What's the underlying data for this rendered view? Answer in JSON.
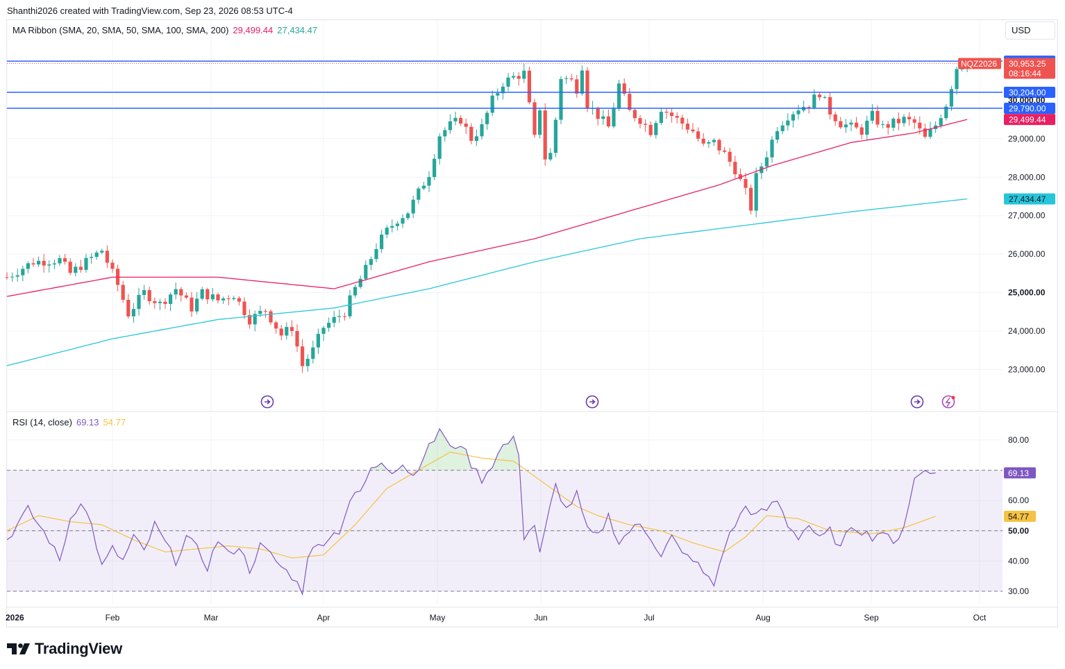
{
  "header": {
    "attribution": "Shanthi2026 created with TradingView.com, Sep 23, 2026 08:53 UTC-4"
  },
  "currency": "USD",
  "symbol": "NQZ2026",
  "countdown": "08:16:44",
  "logo_text": "TradingView",
  "colors": {
    "up": "#26a69a",
    "down": "#ef5350",
    "ma_fast": "#e91e63",
    "ma_slow": "#26c6da",
    "level": "#2962ff",
    "rsi": "#7e57c2",
    "rsi_ma": "#f5c242"
  },
  "chart_data": [
    {
      "type": "candlestick",
      "title": "MA Ribbon (SMA, 20, SMA, 50, SMA, 100, SMA, 200)",
      "ma_values": [
        "29,499.44",
        "27,434.47"
      ],
      "x_tick_labels": [
        "2026",
        "Feb",
        "Mar",
        "Apr",
        "May",
        "Jun",
        "Jul",
        "Aug",
        "Sep",
        "Oct"
      ],
      "y_tick_labels": [
        "29,000.00",
        "28,000.00",
        "27,000.00",
        "26,000.00",
        "25,000.00",
        "24,000.00",
        "23,000.00"
      ],
      "y_ticks": [
        29000,
        28000,
        27000,
        26000,
        25000,
        24000,
        23000
      ],
      "ylim": [
        22200,
        31400
      ],
      "horizontal_levels": [
        31013.75,
        30204.0,
        29790.0
      ],
      "price_tags": [
        {
          "label": "31,013.75",
          "value": 31013.75,
          "kind": "level"
        },
        {
          "label": "30,953.25",
          "value": 30953.25,
          "kind": "last"
        },
        {
          "label": "30,204.00",
          "value": 30204.0,
          "kind": "level"
        },
        {
          "label": "30,000.00",
          "value": 30000.0,
          "kind": "tick"
        },
        {
          "label": "29,790.00",
          "value": 29790.0,
          "kind": "level"
        },
        {
          "label": "29,499.44",
          "value": 29499.44,
          "kind": "ma_fast"
        },
        {
          "label": "27,434.47",
          "value": 27434.47,
          "kind": "ma_slow"
        }
      ],
      "anchor_points": [
        [
          0,
          25400
        ],
        [
          5,
          25800
        ],
        [
          10,
          25850
        ],
        [
          12,
          25500
        ],
        [
          15,
          25800
        ],
        [
          18,
          26100
        ],
        [
          21,
          25200
        ],
        [
          23,
          24450
        ],
        [
          26,
          25000
        ],
        [
          29,
          24700
        ],
        [
          32,
          25100
        ],
        [
          35,
          24600
        ],
        [
          37,
          25000
        ],
        [
          40,
          24800
        ],
        [
          43,
          24950
        ],
        [
          46,
          24300
        ],
        [
          49,
          24550
        ],
        [
          52,
          23900
        ],
        [
          54,
          24100
        ],
        [
          56,
          23100
        ],
        [
          58,
          23500
        ],
        [
          60,
          24100
        ],
        [
          62,
          24300
        ],
        [
          64,
          24500
        ],
        [
          66,
          25100
        ],
        [
          68,
          25600
        ],
        [
          70,
          26200
        ],
        [
          72,
          26600
        ],
        [
          74,
          26900
        ],
        [
          76,
          27100
        ],
        [
          78,
          27600
        ],
        [
          80,
          28100
        ],
        [
          82,
          29100
        ],
        [
          84,
          29350
        ],
        [
          86,
          29500
        ],
        [
          88,
          29000
        ],
        [
          90,
          29300
        ],
        [
          92,
          30000
        ],
        [
          94,
          30450
        ],
        [
          96,
          30600
        ],
        [
          98,
          30700
        ],
        [
          100,
          29000
        ],
        [
          101,
          29800
        ],
        [
          102,
          28500
        ],
        [
          103,
          28600
        ],
        [
          104,
          29500
        ],
        [
          105,
          30600
        ],
        [
          107,
          30500
        ],
        [
          108,
          30300
        ],
        [
          109,
          30900
        ],
        [
          110,
          29900
        ],
        [
          112,
          29600
        ],
        [
          114,
          29300
        ],
        [
          116,
          30400
        ],
        [
          118,
          29700
        ],
        [
          120,
          29500
        ],
        [
          122,
          29200
        ],
        [
          124,
          29800
        ],
        [
          126,
          29600
        ],
        [
          128,
          29400
        ],
        [
          130,
          29200
        ],
        [
          132,
          28800
        ],
        [
          134,
          28900
        ],
        [
          136,
          28600
        ],
        [
          138,
          28200
        ],
        [
          140,
          27600
        ],
        [
          141,
          27200
        ],
        [
          142,
          28000
        ],
        [
          144,
          28600
        ],
        [
          146,
          29300
        ],
        [
          148,
          29600
        ],
        [
          150,
          29800
        ],
        [
          152,
          29900
        ],
        [
          154,
          30200
        ],
        [
          156,
          29700
        ],
        [
          158,
          29400
        ],
        [
          160,
          29300
        ],
        [
          162,
          29200
        ],
        [
          164,
          29600
        ],
        [
          166,
          29300
        ],
        [
          168,
          29400
        ],
        [
          170,
          29500
        ],
        [
          172,
          29400
        ],
        [
          174,
          29000
        ],
        [
          176,
          29350
        ],
        [
          178,
          29900
        ],
        [
          180,
          30850
        ],
        [
          182,
          30953
        ]
      ],
      "ma_fast_anchors": [
        [
          0,
          24900
        ],
        [
          20,
          25400
        ],
        [
          40,
          25400
        ],
        [
          62,
          25100
        ],
        [
          80,
          25800
        ],
        [
          100,
          26400
        ],
        [
          120,
          27200
        ],
        [
          135,
          27800
        ],
        [
          145,
          28300
        ],
        [
          160,
          28900
        ],
        [
          172,
          29150
        ],
        [
          182,
          29499.44
        ]
      ],
      "ma_slow_anchors": [
        [
          0,
          23100
        ],
        [
          20,
          23800
        ],
        [
          40,
          24300
        ],
        [
          62,
          24600
        ],
        [
          80,
          25100
        ],
        [
          100,
          25800
        ],
        [
          120,
          26400
        ],
        [
          140,
          26750
        ],
        [
          160,
          27100
        ],
        [
          182,
          27434.47
        ]
      ]
    },
    {
      "type": "line",
      "title": "RSI (14, close)",
      "values": [
        "69.13",
        "54.77"
      ],
      "y_tick_labels": [
        "80.00",
        "60.00",
        "50.00",
        "40.00",
        "30.00"
      ],
      "y_ticks": [
        80,
        60,
        50,
        40,
        30
      ],
      "ylim": [
        28,
        86
      ],
      "bands": [
        30,
        50,
        70
      ],
      "last_rsi": 69.13,
      "last_ma": 54.77,
      "rsi_anchors": [
        [
          0,
          47
        ],
        [
          4,
          57
        ],
        [
          8,
          47
        ],
        [
          10,
          40
        ],
        [
          12,
          54
        ],
        [
          14,
          60
        ],
        [
          16,
          52
        ],
        [
          18,
          38
        ],
        [
          20,
          44
        ],
        [
          22,
          40
        ],
        [
          24,
          48
        ],
        [
          26,
          43
        ],
        [
          28,
          52
        ],
        [
          30,
          46
        ],
        [
          32,
          40
        ],
        [
          34,
          48
        ],
        [
          36,
          44
        ],
        [
          38,
          38
        ],
        [
          40,
          47
        ],
        [
          42,
          42
        ],
        [
          44,
          45
        ],
        [
          46,
          37
        ],
        [
          48,
          45
        ],
        [
          50,
          42
        ],
        [
          52,
          38
        ],
        [
          54,
          35
        ],
        [
          56,
          30
        ],
        [
          57,
          42
        ],
        [
          59,
          45
        ],
        [
          61,
          48
        ],
        [
          63,
          50
        ],
        [
          65,
          60
        ],
        [
          67,
          63
        ],
        [
          69,
          70
        ],
        [
          71,
          73
        ],
        [
          73,
          70
        ],
        [
          75,
          72
        ],
        [
          77,
          68
        ],
        [
          79,
          75
        ],
        [
          81,
          80
        ],
        [
          82,
          84
        ],
        [
          84,
          77
        ],
        [
          86,
          79
        ],
        [
          88,
          72
        ],
        [
          90,
          67
        ],
        [
          92,
          72
        ],
        [
          94,
          78
        ],
        [
          96,
          80
        ],
        [
          97,
          76
        ],
        [
          98,
          48
        ],
        [
          100,
          52
        ],
        [
          101,
          42
        ],
        [
          103,
          58
        ],
        [
          104,
          65
        ],
        [
          106,
          57
        ],
        [
          108,
          62
        ],
        [
          110,
          50
        ],
        [
          112,
          48
        ],
        [
          114,
          55
        ],
        [
          116,
          46
        ],
        [
          118,
          50
        ],
        [
          120,
          52
        ],
        [
          122,
          48
        ],
        [
          124,
          42
        ],
        [
          126,
          48
        ],
        [
          128,
          42
        ],
        [
          130,
          41
        ],
        [
          132,
          36
        ],
        [
          134,
          32
        ],
        [
          136,
          45
        ],
        [
          138,
          52
        ],
        [
          140,
          58
        ],
        [
          142,
          55
        ],
        [
          144,
          57
        ],
        [
          146,
          60
        ],
        [
          148,
          52
        ],
        [
          150,
          48
        ],
        [
          152,
          52
        ],
        [
          154,
          47
        ],
        [
          156,
          50
        ],
        [
          158,
          44
        ],
        [
          160,
          52
        ],
        [
          162,
          50
        ],
        [
          164,
          48
        ],
        [
          166,
          50
        ],
        [
          168,
          45
        ],
        [
          170,
          52
        ],
        [
          172,
          67
        ],
        [
          174,
          70
        ],
        [
          176,
          69.13
        ]
      ],
      "rsi_ma_anchors": [
        [
          0,
          50
        ],
        [
          6,
          55
        ],
        [
          12,
          53
        ],
        [
          18,
          52
        ],
        [
          24,
          47
        ],
        [
          30,
          43
        ],
        [
          36,
          44
        ],
        [
          42,
          45
        ],
        [
          48,
          44
        ],
        [
          54,
          41
        ],
        [
          60,
          42
        ],
        [
          66,
          52
        ],
        [
          72,
          64
        ],
        [
          78,
          70
        ],
        [
          84,
          76
        ],
        [
          90,
          74
        ],
        [
          96,
          73
        ],
        [
          100,
          68
        ],
        [
          104,
          63
        ],
        [
          108,
          58
        ],
        [
          112,
          55
        ],
        [
          118,
          52
        ],
        [
          124,
          50
        ],
        [
          130,
          46
        ],
        [
          136,
          43
        ],
        [
          140,
          48
        ],
        [
          144,
          55
        ],
        [
          150,
          54
        ],
        [
          156,
          50
        ],
        [
          164,
          49
        ],
        [
          170,
          51
        ],
        [
          176,
          54.77
        ]
      ]
    }
  ]
}
